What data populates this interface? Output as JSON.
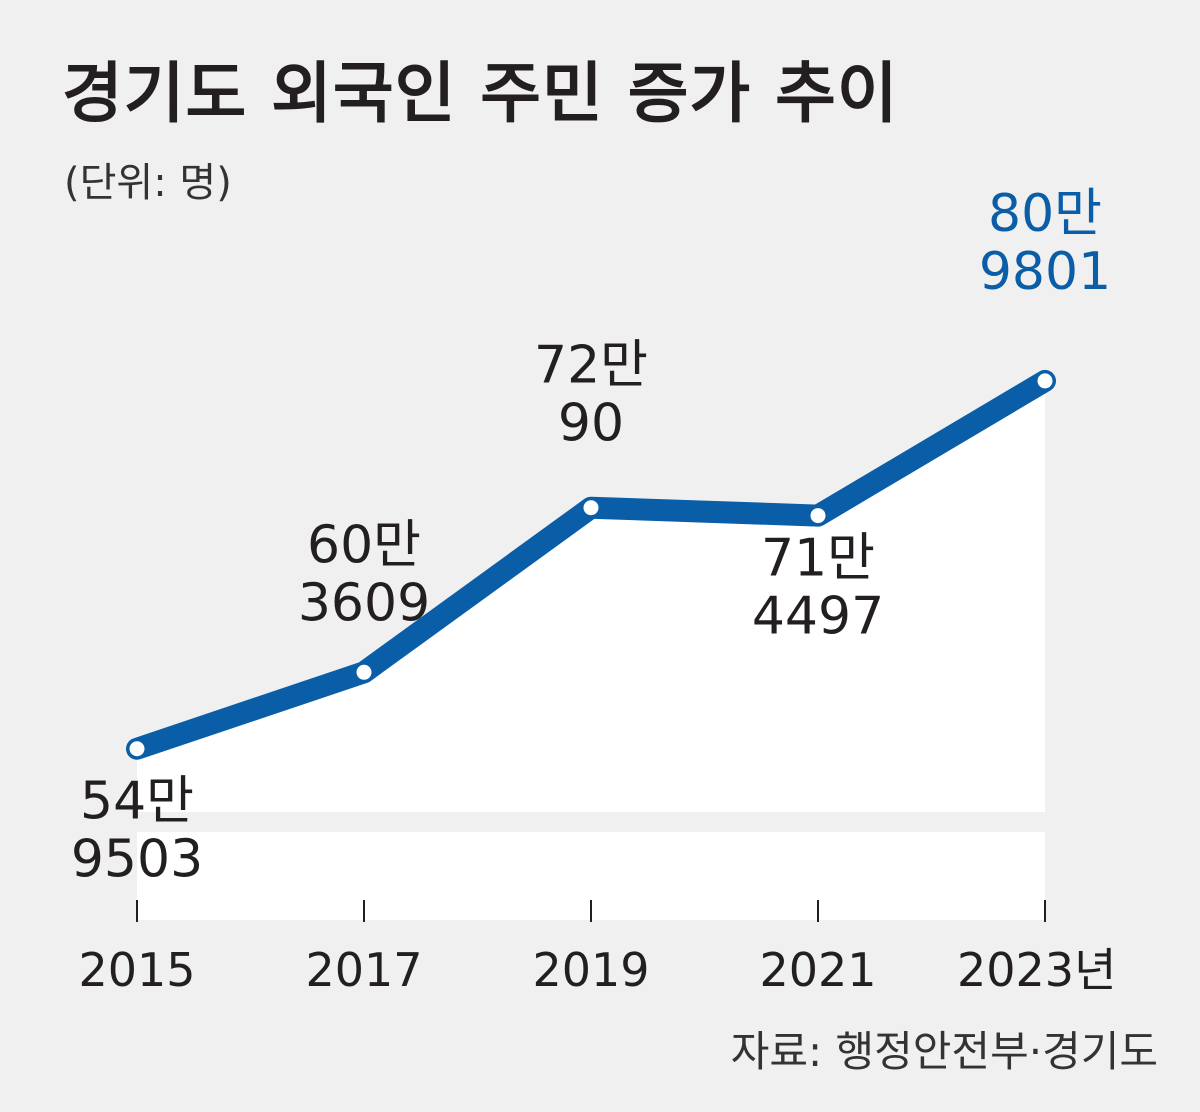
{
  "title": "경기도 외국인 주민 증가 추이",
  "unit_label": "(단위: 명)",
  "source": "자료: 행정안전부·경기도",
  "colors": {
    "line": "#0a5ea8",
    "highlight_label": "#0a5ea8",
    "text": "#231f20",
    "plot_bg": "#ffffff",
    "page_bg": "#f0f0f0"
  },
  "chart_data": {
    "type": "line",
    "x": [
      "2015",
      "2017",
      "2019",
      "2021",
      "2023년"
    ],
    "values": [
      549503,
      603609,
      720090,
      714497,
      809801
    ],
    "data_labels": [
      [
        "54만",
        "9503"
      ],
      [
        "60만",
        "3609"
      ],
      [
        "72만",
        "90"
      ],
      [
        "71만",
        "4497"
      ],
      [
        "80만",
        "9801"
      ]
    ],
    "highlight_index": 4,
    "grid": false
  }
}
